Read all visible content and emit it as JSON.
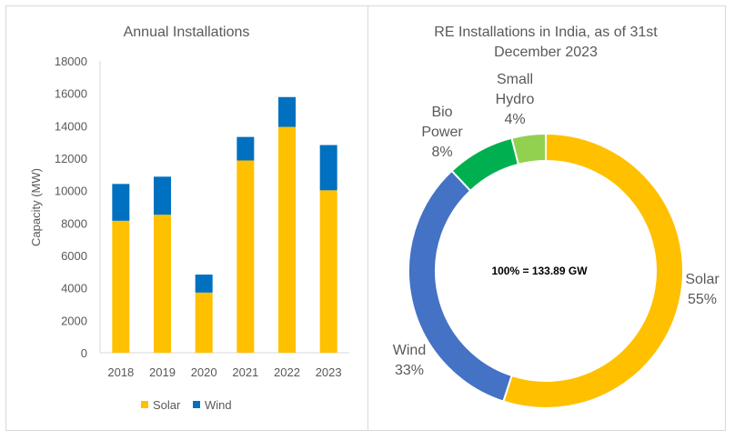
{
  "chart_data": [
    {
      "type": "bar",
      "stacked": true,
      "title": "Annual Installations",
      "xlabel": "",
      "ylabel": "Capacity (MW)",
      "ylim": [
        0,
        18000
      ],
      "yticks": [
        0,
        2000,
        4000,
        6000,
        8000,
        10000,
        12000,
        14000,
        16000,
        18000
      ],
      "categories": [
        "2018",
        "2019",
        "2020",
        "2021",
        "2022",
        "2023"
      ],
      "series": [
        {
          "name": "Solar",
          "color": "#FFC000",
          "values": [
            8140,
            8510,
            3710,
            11860,
            13930,
            10020
          ]
        },
        {
          "name": "Wind",
          "color": "#0070C0",
          "values": [
            2270,
            2350,
            1110,
            1450,
            1840,
            2790
          ]
        }
      ],
      "grid": false,
      "legend": "bottom"
    },
    {
      "type": "pie",
      "donut": true,
      "title": "RE Installations in India, as of 31st December 2023",
      "center_label": "100% = 133.89 GW",
      "slices": [
        {
          "name": "Solar",
          "value": 55,
          "label": "55%",
          "color": "#FFC000"
        },
        {
          "name": "Wind",
          "value": 33,
          "label": "33%",
          "color": "#4472C4"
        },
        {
          "name": "Bio Power",
          "value": 8,
          "label": "8%",
          "color": "#00B050"
        },
        {
          "name": "Small Hydro",
          "value": 4,
          "label": "4%",
          "color": "#92D050"
        }
      ],
      "legend": "none"
    }
  ]
}
